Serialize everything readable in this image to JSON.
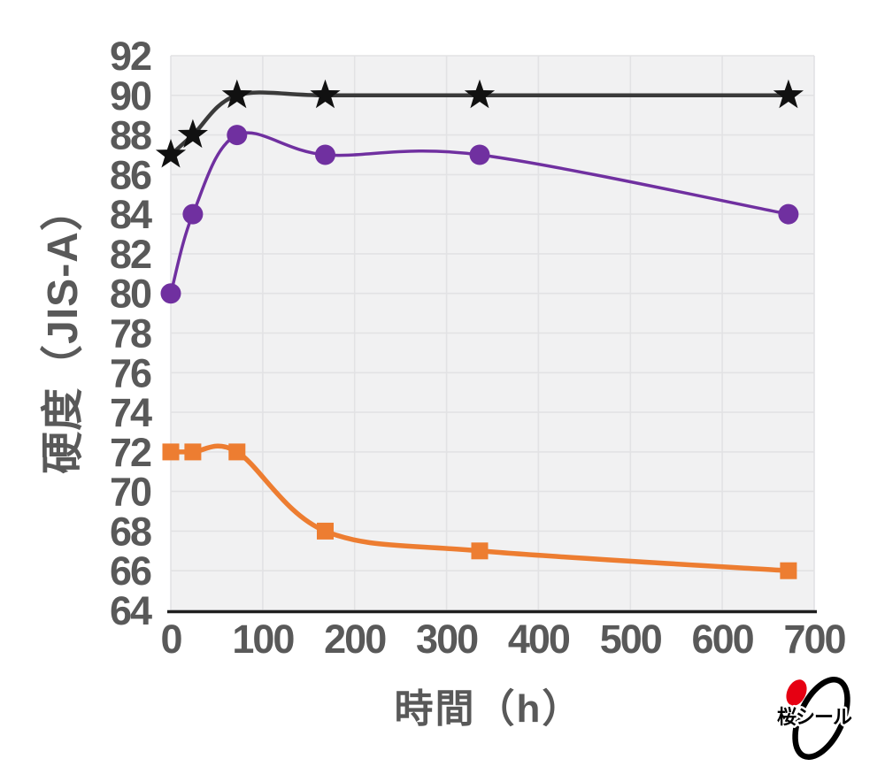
{
  "chart_data": {
    "type": "line",
    "title": "",
    "xlabel": "時間（h）",
    "ylabel": "硬度（JIS-A）",
    "x": [
      0,
      24,
      72,
      168,
      336,
      672
    ],
    "xlim": [
      0,
      700
    ],
    "ylim": [
      64,
      92
    ],
    "xticks": [
      0,
      100,
      200,
      300,
      400,
      500,
      600,
      700
    ],
    "yticks": [
      64,
      66,
      68,
      70,
      72,
      74,
      76,
      78,
      80,
      82,
      84,
      86,
      88,
      90,
      92
    ],
    "grid": true,
    "legend": "none",
    "series": [
      {
        "name": "black-star",
        "marker": "star",
        "color": "#111111",
        "line_color": "#3a3a3a",
        "values": [
          87,
          88,
          90,
          90,
          90,
          90
        ]
      },
      {
        "name": "purple-circle",
        "marker": "circle",
        "color": "#7030A0",
        "line_color": "#7030A0",
        "values": [
          80,
          84,
          88,
          87,
          87,
          84
        ]
      },
      {
        "name": "orange-square",
        "marker": "square",
        "color": "#ED7D31",
        "line_color": "#ED7D31",
        "values": [
          72,
          72,
          72,
          68,
          67,
          66
        ]
      }
    ]
  },
  "colors": {
    "plot_bg": "#f1f1f2",
    "gridline": "#e2e2e4",
    "axis_line": "#1f1f1f",
    "tick_text": "#595959",
    "axis_title_text": "#595959"
  },
  "logo": {
    "text": "桜シール",
    "accent_color": "#e60012",
    "orbit_color": "#000000"
  }
}
